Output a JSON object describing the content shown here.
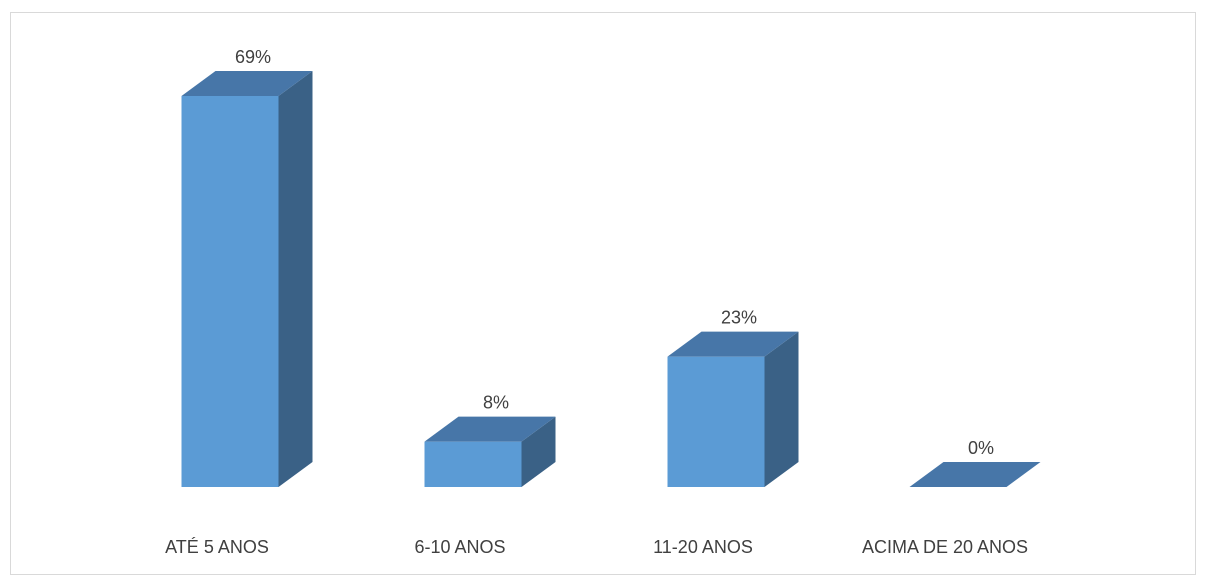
{
  "chart_data": {
    "type": "bar",
    "style": "3d-column",
    "title": "",
    "xlabel": "",
    "ylabel": "",
    "categories": [
      "ATÉ 5 ANOS",
      "6-10 ANOS",
      "11-20 ANOS",
      "ACIMA DE 20 ANOS"
    ],
    "values": [
      69,
      8,
      23,
      0
    ],
    "data_labels": [
      "69%",
      "8%",
      "23%",
      "0%"
    ],
    "unit": "%",
    "ylim": [
      0,
      69
    ],
    "grid": false,
    "legend": "none",
    "colors": {
      "front": "#5b9bd5",
      "top": "#4776a8",
      "side": "#3a6186"
    }
  }
}
